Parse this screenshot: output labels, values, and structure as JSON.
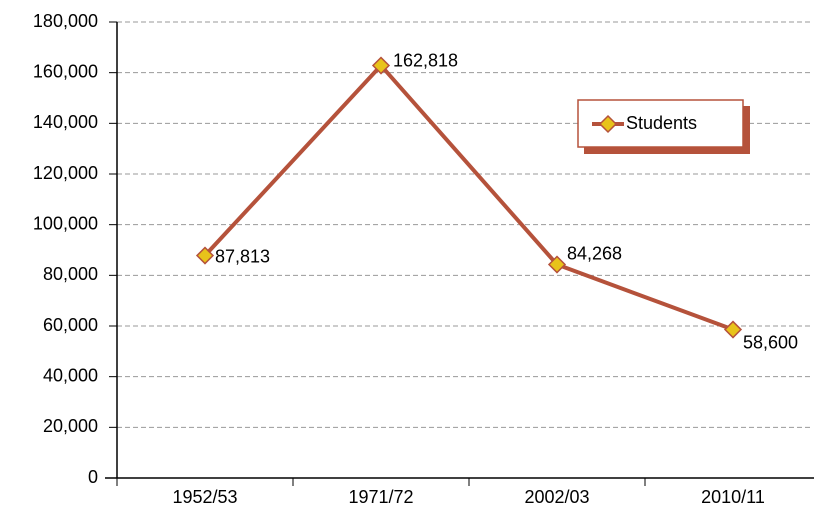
{
  "chart_data": {
    "type": "line",
    "categories": [
      "1952/53",
      "1971/72",
      "2002/03",
      "2010/11"
    ],
    "series": [
      {
        "name": "Students",
        "color": "#b5523b",
        "marker_color": "#e8c31a",
        "values": [
          87813,
          162818,
          84268,
          58600
        ],
        "value_labels": [
          "87,813",
          "162,818",
          "84,268",
          "58,600"
        ]
      }
    ],
    "ylim": [
      0,
      180000
    ],
    "yticks": [
      {
        "value": 0,
        "label": "0"
      },
      {
        "value": 20000,
        "label": "20,000"
      },
      {
        "value": 40000,
        "label": "40,000"
      },
      {
        "value": 60000,
        "label": "60,000"
      },
      {
        "value": 80000,
        "label": "80,000"
      },
      {
        "value": 100000,
        "label": "100,000"
      },
      {
        "value": 120000,
        "label": "120,000"
      },
      {
        "value": 140000,
        "label": "140,000"
      },
      {
        "value": 160000,
        "label": "160,000"
      },
      {
        "value": 180000,
        "label": "180,000"
      }
    ],
    "grid": true,
    "legend": "upper right"
  }
}
